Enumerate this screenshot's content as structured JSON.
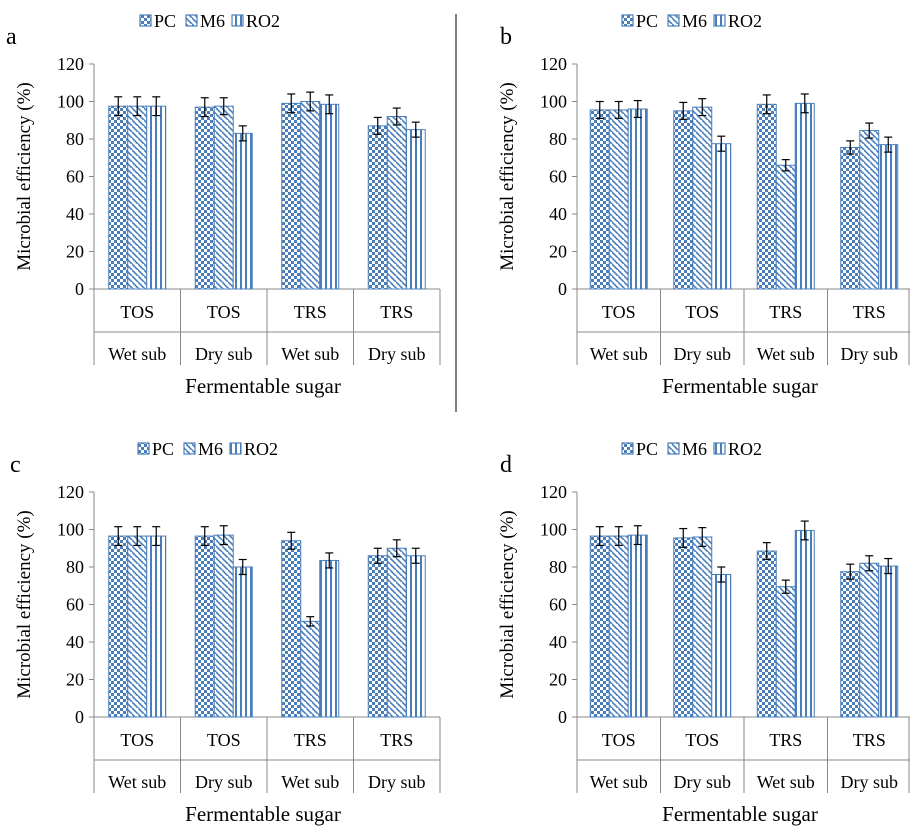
{
  "legend": [
    {
      "label": "PC",
      "pattern": "checker"
    },
    {
      "label": "M6",
      "pattern": "diagonal"
    },
    {
      "label": "RO2",
      "pattern": "vertical"
    }
  ],
  "colors": {
    "bar_fill": "#4a7ebb",
    "bar_light": "#ffffff",
    "axis": "#888888",
    "text": "#000000"
  },
  "chart_data": [
    {
      "panel": "a",
      "type": "bar",
      "ylabel": "Microbial efficiency (%)",
      "xlabel": "Fermentable sugar",
      "ylim": [
        0,
        120
      ],
      "yticks": [
        0,
        20,
        40,
        60,
        80,
        100,
        120
      ],
      "categories": [
        [
          "TOS",
          "Wet sub"
        ],
        [
          "TOS",
          "Dry sub"
        ],
        [
          "TRS",
          "Wet sub"
        ],
        [
          "TRS",
          "Dry sub"
        ]
      ],
      "series": [
        {
          "name": "PC",
          "values": [
            97.5,
            97,
            99,
            87
          ],
          "errors": [
            5,
            5,
            5,
            4.5
          ]
        },
        {
          "name": "M6",
          "values": [
            97.5,
            97.5,
            100,
            92
          ],
          "errors": [
            5,
            4.5,
            5,
            4.5
          ]
        },
        {
          "name": "RO2",
          "values": [
            97.5,
            83,
            98.5,
            85
          ],
          "errors": [
            5,
            4,
            5,
            4
          ]
        }
      ]
    },
    {
      "panel": "b",
      "type": "bar",
      "ylabel": "Microbial efficiency (%)",
      "xlabel": "Fermentable sugar",
      "ylim": [
        0,
        120
      ],
      "yticks": [
        0,
        20,
        40,
        60,
        80,
        100,
        120
      ],
      "categories": [
        [
          "TOS",
          "Wet sub"
        ],
        [
          "TOS",
          "Dry sub"
        ],
        [
          "TRS",
          "Wet sub"
        ],
        [
          "TRS",
          "Dry sub"
        ]
      ],
      "series": [
        {
          "name": "PC",
          "values": [
            95.5,
            95,
            98.5,
            75.5
          ],
          "errors": [
            4.5,
            4.5,
            5,
            3.5
          ]
        },
        {
          "name": "M6",
          "values": [
            95.5,
            97,
            66,
            84.5
          ],
          "errors": [
            4.5,
            4.5,
            3,
            4
          ]
        },
        {
          "name": "RO2",
          "values": [
            96,
            77.5,
            99,
            77
          ],
          "errors": [
            4.5,
            4,
            5,
            4
          ]
        }
      ]
    },
    {
      "panel": "c",
      "type": "bar",
      "ylabel": "Microbial efficiency (%)",
      "xlabel": "Fermentable sugar",
      "ylim": [
        0,
        120
      ],
      "yticks": [
        0,
        20,
        40,
        60,
        80,
        100,
        120
      ],
      "categories": [
        [
          "TOS",
          "Wet sub"
        ],
        [
          "TOS",
          "Dry sub"
        ],
        [
          "TRS",
          "Wet sub"
        ],
        [
          "TRS",
          "Dry sub"
        ]
      ],
      "series": [
        {
          "name": "PC",
          "values": [
            96.5,
            96.5,
            94,
            86
          ],
          "errors": [
            5,
            5,
            4.5,
            4
          ]
        },
        {
          "name": "M6",
          "values": [
            96.5,
            97,
            51,
            90
          ],
          "errors": [
            5,
            5,
            2.5,
            4.5
          ]
        },
        {
          "name": "RO2",
          "values": [
            96.5,
            80,
            83.5,
            86
          ],
          "errors": [
            5,
            4,
            4,
            4
          ]
        }
      ]
    },
    {
      "panel": "d",
      "type": "bar",
      "ylabel": "Microbial efficiency (%)",
      "xlabel": "Fermentable sugar",
      "ylim": [
        0,
        120
      ],
      "yticks": [
        0,
        20,
        40,
        60,
        80,
        100,
        120
      ],
      "categories": [
        [
          "TOS",
          "Wet sub"
        ],
        [
          "TOS",
          "Dry sub"
        ],
        [
          "TRS",
          "Wet sub"
        ],
        [
          "TRS",
          "Dry sub"
        ]
      ],
      "series": [
        {
          "name": "PC",
          "values": [
            96.5,
            95.5,
            88.5,
            77.5
          ],
          "errors": [
            5,
            5,
            4.5,
            4
          ]
        },
        {
          "name": "M6",
          "values": [
            96.5,
            96,
            69.5,
            82
          ],
          "errors": [
            5,
            5,
            3.5,
            4
          ]
        },
        {
          "name": "RO2",
          "values": [
            97,
            76,
            99.5,
            80.5
          ],
          "errors": [
            5,
            4,
            5,
            4
          ]
        }
      ]
    }
  ]
}
